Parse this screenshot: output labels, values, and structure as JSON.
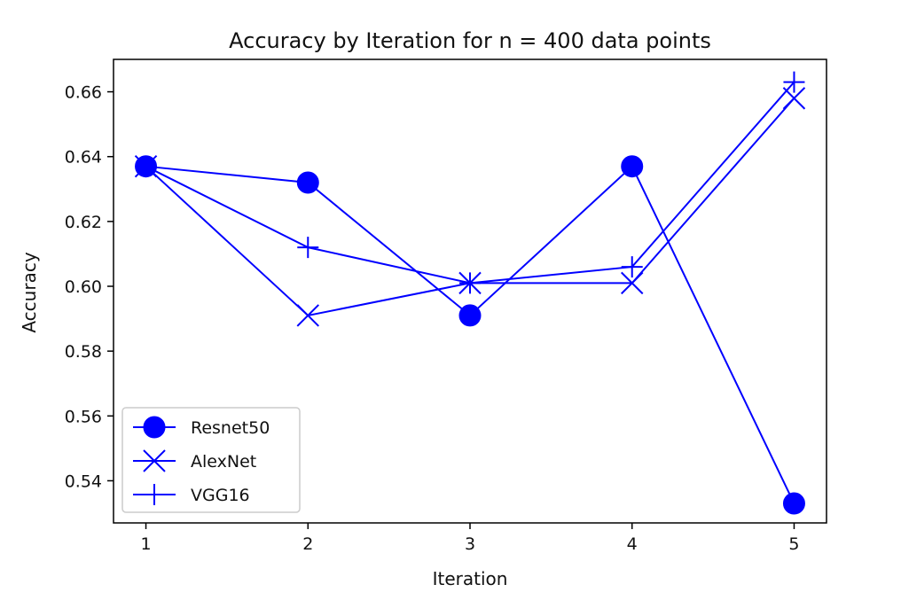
{
  "chart_data": {
    "type": "line",
    "title": "Accuracy by Iteration for n = 400 data points",
    "xlabel": "Iteration",
    "ylabel": "Accuracy",
    "x": [
      1,
      2,
      3,
      4,
      5
    ],
    "xticks": [
      "1",
      "2",
      "3",
      "4",
      "5"
    ],
    "yticks": [
      "0.54",
      "0.56",
      "0.58",
      "0.60",
      "0.62",
      "0.64",
      "0.66"
    ],
    "xlim": [
      0.8,
      5.2
    ],
    "ylim": [
      0.527,
      0.67
    ],
    "grid": false,
    "legend_position": "lower-left",
    "series": [
      {
        "name": "Resnet50",
        "marker": "circle",
        "color": "#0000ff",
        "values": [
          0.637,
          0.632,
          0.591,
          0.637,
          0.533
        ]
      },
      {
        "name": "AlexNet",
        "marker": "x",
        "color": "#0000ff",
        "values": [
          0.637,
          0.591,
          0.601,
          0.601,
          0.658
        ]
      },
      {
        "name": "VGG16",
        "marker": "plus",
        "color": "#0000ff",
        "values": [
          0.637,
          0.612,
          0.601,
          0.606,
          0.663
        ]
      }
    ]
  }
}
